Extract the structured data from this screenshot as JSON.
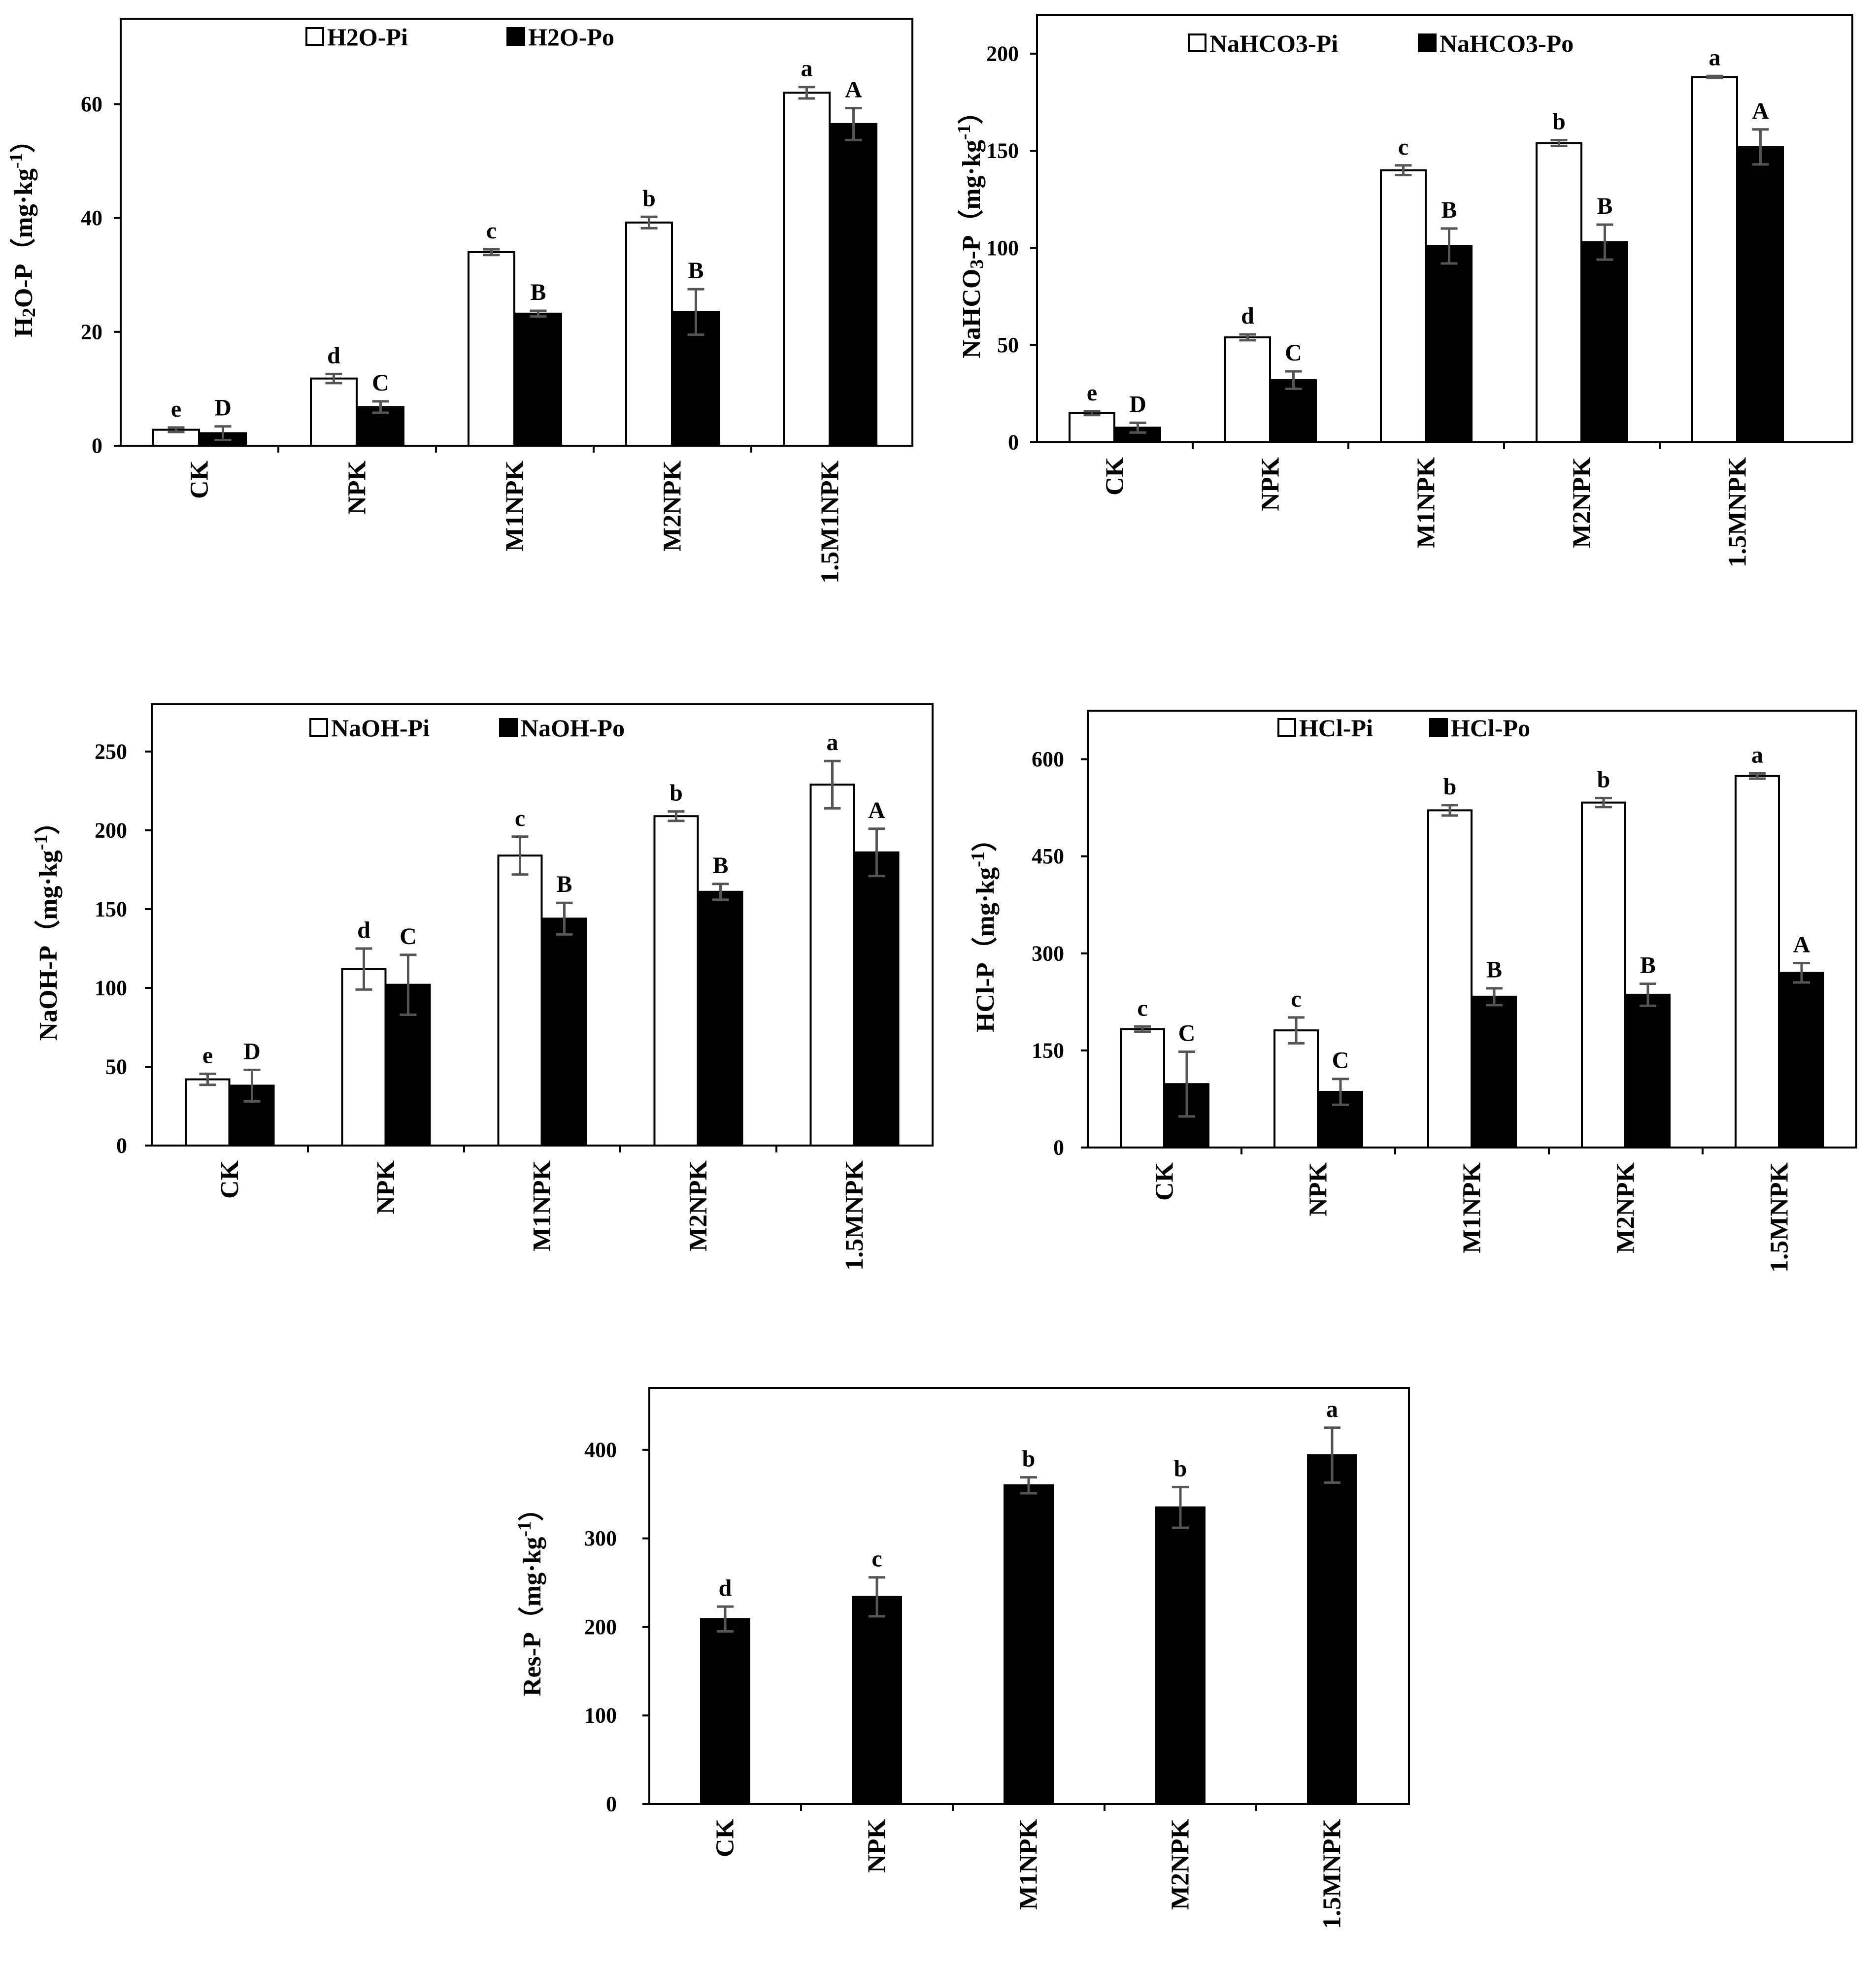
{
  "chart_data": [
    {
      "type": "bar",
      "id": "h2o",
      "ylabel": "H2O-P（mg·kg-1）",
      "ylabel_parts": [
        "H",
        "2",
        "O-P（mg·kg",
        "-1",
        "）"
      ],
      "ylim": [
        0,
        75
      ],
      "yticks": [
        0,
        20,
        40,
        60
      ],
      "tick_labels": [
        "0",
        "20",
        "40",
        "60"
      ],
      "categories": [
        "CK",
        "NPK",
        "M1NPK",
        "M2NPK",
        "1.5M1NPK"
      ],
      "series": [
        {
          "name": "H2O-Pi",
          "fill": "#ffffff",
          "values": [
            2.8,
            11.8,
            34.0,
            39.2,
            62.0
          ],
          "errors": [
            0.4,
            0.8,
            0.5,
            1.0,
            1.0
          ],
          "letters": [
            "e",
            "d",
            "c",
            "b",
            "a"
          ]
        },
        {
          "name": "H2O-Po",
          "fill": "#000000",
          "values": [
            2.2,
            6.8,
            23.2,
            23.5,
            56.5
          ],
          "errors": [
            1.2,
            1.0,
            0.5,
            4.0,
            2.8
          ],
          "letters": [
            "D",
            "C",
            "B",
            "B",
            "A"
          ]
        }
      ]
    },
    {
      "type": "bar",
      "id": "nahco3",
      "ylabel": "NaHCO3-P（mg·kg-1）",
      "ylabel_parts": [
        "NaHCO",
        "3",
        "-P（mg·kg",
        "-1",
        "）"
      ],
      "ylim": [
        0,
        220
      ],
      "yticks": [
        0,
        50,
        100,
        150,
        200
      ],
      "tick_labels": [
        "0",
        "50",
        "100",
        "150",
        "200"
      ],
      "categories": [
        "CK",
        "NPK",
        "M1NPK",
        "M2NPK",
        "1.5MNPK"
      ],
      "series": [
        {
          "name": "NaHCO3-Pi",
          "fill": "#ffffff",
          "values": [
            15.0,
            54.0,
            140.0,
            154.0,
            188.0
          ],
          "errors": [
            1.0,
            1.5,
            2.5,
            1.5,
            0.5
          ],
          "letters": [
            "e",
            "d",
            "c",
            "b",
            "a"
          ]
        },
        {
          "name": "NaHCO3-Po",
          "fill": "#000000",
          "values": [
            7.5,
            32.0,
            101.0,
            103.0,
            152.0
          ],
          "errors": [
            2.5,
            4.5,
            9.0,
            9.0,
            9.0
          ],
          "letters": [
            "D",
            "C",
            "B",
            "B",
            "A"
          ]
        }
      ]
    },
    {
      "type": "bar",
      "id": "naoh",
      "ylabel": "NaOH-P（mg·kg-1）",
      "ylabel_parts": [
        "NaOH-P（mg·kg",
        "-1",
        "）"
      ],
      "ylim": [
        0,
        280
      ],
      "yticks": [
        0,
        50,
        100,
        150,
        200,
        250
      ],
      "tick_labels": [
        "0",
        "50",
        "100",
        "150",
        "200",
        "250"
      ],
      "categories": [
        "CK",
        "NPK",
        "M1NPK",
        "M2NPK",
        "1.5MNPK"
      ],
      "series": [
        {
          "name": "NaOH-Pi",
          "fill": "#ffffff",
          "values": [
            42.0,
            112.0,
            184.0,
            209.0,
            229.0
          ],
          "errors": [
            3.5,
            13.0,
            12.0,
            3.0,
            15.0
          ],
          "letters": [
            "e",
            "d",
            "c",
            "b",
            "a"
          ]
        },
        {
          "name": "NaOH-Po",
          "fill": "#000000",
          "values": [
            38.0,
            102.0,
            144.0,
            161.0,
            186.0
          ],
          "errors": [
            10.0,
            19.0,
            10.0,
            5.0,
            15.0
          ],
          "letters": [
            "D",
            "C",
            "B",
            "B",
            "A"
          ]
        }
      ]
    },
    {
      "type": "bar",
      "id": "hcl",
      "ylabel": "HCl-P（mg·kg-1）",
      "ylabel_parts": [
        "HCl-P（mg·kg",
        "-1",
        "）"
      ],
      "ylim": [
        0,
        675
      ],
      "yticks": [
        0,
        150,
        300,
        450,
        600
      ],
      "tick_labels": [
        "0",
        "150",
        "300",
        "450",
        "600"
      ],
      "categories": [
        "CK",
        "NPK",
        "M1NPK",
        "M2NPK",
        "1.5MNPK"
      ],
      "series": [
        {
          "name": "HCl-Pi",
          "fill": "#ffffff",
          "values": [
            183.0,
            181.0,
            521.0,
            533.0,
            574.0
          ],
          "errors": [
            4.0,
            20.0,
            8.0,
            7.0,
            4.0
          ],
          "letters": [
            "c",
            "c",
            "b",
            "b",
            "a"
          ]
        },
        {
          "name": "HCl-Po",
          "fill": "#000000",
          "values": [
            98.0,
            86.0,
            233.0,
            236.0,
            270.0
          ],
          "errors": [
            50.0,
            20.0,
            13.0,
            17.0,
            15.0
          ],
          "letters": [
            "C",
            "C",
            "B",
            "B",
            "A"
          ]
        }
      ]
    },
    {
      "type": "bar",
      "id": "res",
      "ylabel": "Res-P（mg·kg-1）",
      "ylabel_parts": [
        "Res-P（mg·kg",
        "-1",
        "）"
      ],
      "ylim": [
        0,
        470
      ],
      "yticks": [
        0,
        100,
        200,
        300,
        400
      ],
      "tick_labels": [
        "0",
        "100",
        "200",
        "300",
        "400"
      ],
      "categories": [
        "CK",
        "NPK",
        "M1NPK",
        "M2NPK",
        "1.5MNPK"
      ],
      "series": [
        {
          "name": "Res-P",
          "fill": "#000000",
          "values": [
            209.0,
            234.0,
            360.0,
            335.0,
            394.0
          ],
          "errors": [
            14.0,
            22.0,
            9.0,
            23.0,
            31.0
          ],
          "letters": [
            "d",
            "c",
            "b",
            "b",
            "a"
          ]
        }
      ]
    }
  ]
}
